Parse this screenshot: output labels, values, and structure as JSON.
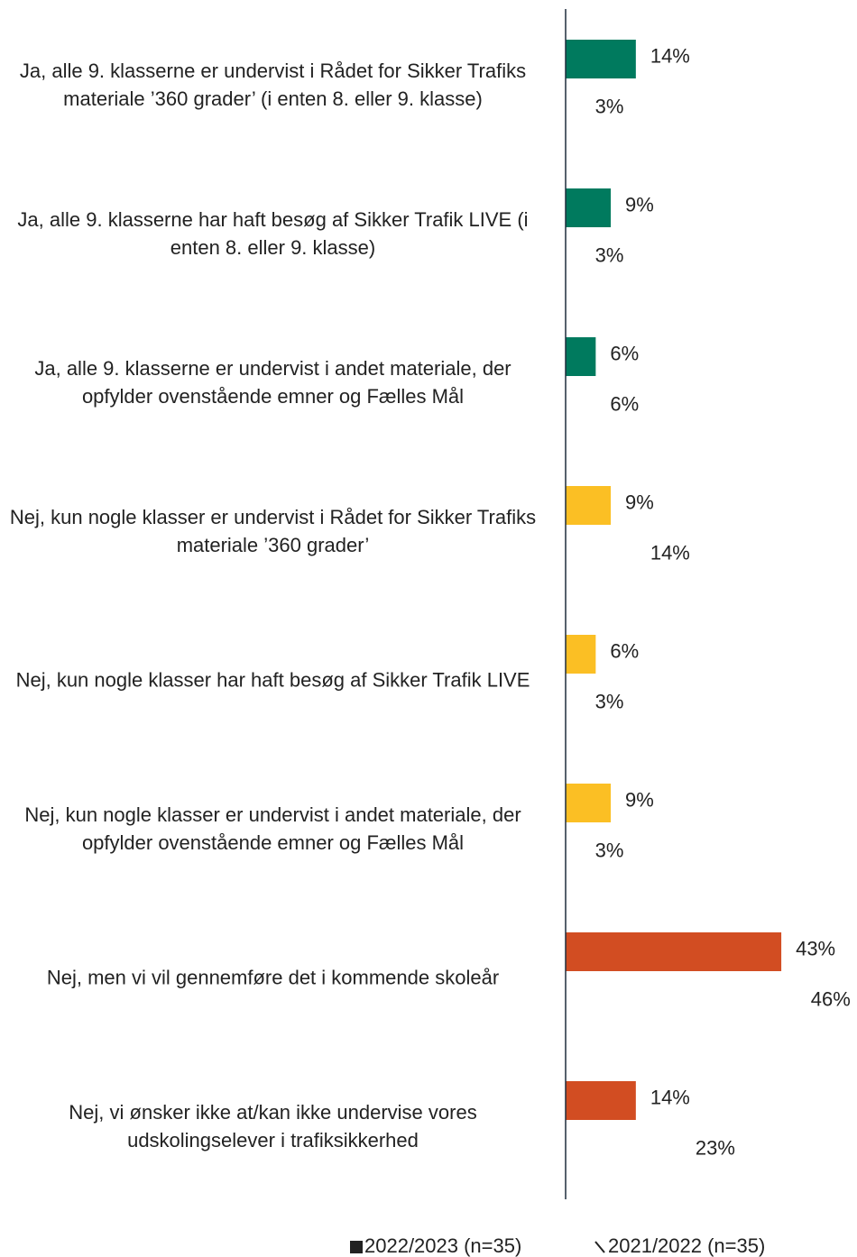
{
  "chart_data": {
    "type": "hbar",
    "categories": [
      "Ja, alle 9. klasserne er undervist i Rådet for Sikker Trafiks materiale ’360 grader’ (i enten 8. eller 9. klasse)",
      "Ja, alle 9. klasserne har haft besøg af Sikker Trafik LIVE (i enten 8. eller 9. klasse)",
      "Ja, alle 9. klasserne er undervist i andet materiale, der opfylder ovenstående emner og Fælles Mål",
      "Nej, kun nogle klasser er undervist i Rådet for Sikker Trafiks materiale ’360 grader’",
      "Nej, kun nogle klasser har haft besøg af Sikker Trafik LIVE",
      "Nej, kun nogle klasser er undervist i andet materiale, der opfylder ovenstående emner og Fælles Mål",
      "Nej, men vi vil gennemføre det i kommende skoleår",
      "Nej, vi ønsker ikke at/kan ikke undervise vores udskolingselever i trafiksikkerhed"
    ],
    "series": [
      {
        "name": "2022/2023 (n=35)",
        "color": "#222222",
        "colors": [
          "#007a5e",
          "#007a5e",
          "#007a5e",
          "#fbbf24",
          "#fbbf24",
          "#fbbf24",
          "#d24d22",
          "#d24d22"
        ],
        "values": [
          14,
          9,
          6,
          9,
          6,
          9,
          43,
          14
        ],
        "value_labels": [
          "14%",
          "9%",
          "6%",
          "9%",
          "6%",
          "9%",
          "43%",
          "14%"
        ]
      },
      {
        "name": "2021/2022 (n=35)",
        "color": "#ffffff",
        "values": [
          3,
          3,
          6,
          14,
          3,
          3,
          46,
          23
        ],
        "value_labels": [
          "3%",
          "3%",
          "6%",
          "14%",
          "3%",
          "3%",
          "46%",
          "23%"
        ]
      }
    ],
    "xlim": [
      0,
      50
    ]
  }
}
